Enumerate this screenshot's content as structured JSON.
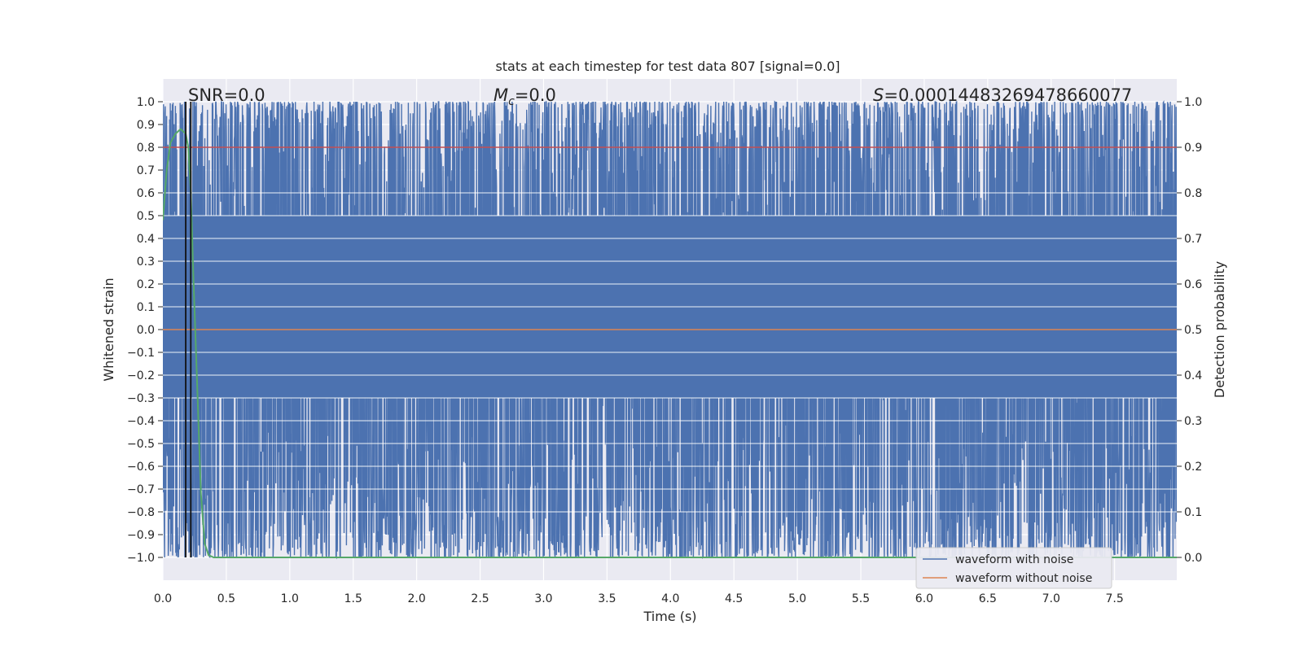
{
  "chart_data": {
    "type": "line",
    "title": "stats at each timestep for test data 807 [signal=0.0]",
    "xlabel": "Time (s)",
    "ylabel_left": "Whitened strain",
    "ylabel_right": "Detection probability",
    "xlim": [
      0.0,
      7.99
    ],
    "ylim_left": [
      -1.1,
      1.1
    ],
    "ylim_right": [
      -0.05,
      1.05
    ],
    "x_ticks": [
      0.0,
      0.5,
      1.0,
      1.5,
      2.0,
      2.5,
      3.0,
      3.5,
      4.0,
      4.5,
      5.0,
      5.5,
      6.0,
      6.5,
      7.0,
      7.5
    ],
    "x_tick_labels": [
      "0.0",
      "0.5",
      "1.0",
      "1.5",
      "2.0",
      "2.5",
      "3.0",
      "3.5",
      "4.0",
      "4.5",
      "5.0",
      "5.5",
      "6.0",
      "6.5",
      "7.0",
      "7.5"
    ],
    "y_left_ticks": [
      1.0,
      0.9,
      0.8,
      0.7,
      0.6,
      0.5,
      0.4,
      0.3,
      0.2,
      0.1,
      0.0,
      -0.1,
      -0.2,
      -0.3,
      -0.4,
      -0.5,
      -0.6,
      -0.7,
      -0.8,
      -0.9,
      -1.0
    ],
    "y_left_tick_labels": [
      "1.0",
      "0.9",
      "0.8",
      "0.7",
      "0.6",
      "0.5",
      "0.4",
      "0.3",
      "0.2",
      "0.1",
      "0.0",
      "−0.1",
      "−0.2",
      "−0.3",
      "−0.4",
      "−0.5",
      "−0.6",
      "−0.7",
      "−0.8",
      "−0.9",
      "−1.0"
    ],
    "y_right_ticks": [
      1.0,
      0.9,
      0.8,
      0.7,
      0.6,
      0.5,
      0.4,
      0.3,
      0.2,
      0.1,
      0.0
    ],
    "y_right_tick_labels": [
      "1.0",
      "0.9",
      "0.8",
      "0.7",
      "0.6",
      "0.5",
      "0.4",
      "0.3",
      "0.2",
      "0.1",
      "0.0"
    ],
    "series": [
      {
        "name": "waveform with noise",
        "color": "#4c72b0",
        "description": "whitened strain noise filling range -1.0 to 1.0"
      },
      {
        "name": "waveform without noise",
        "color": "#dd8452",
        "y_constant": 0.0
      },
      {
        "name": "detection probability",
        "color": "#55a868",
        "axis": "right",
        "x": [
          0.0,
          0.03,
          0.06,
          0.1,
          0.14,
          0.18,
          0.2,
          0.22,
          0.24,
          0.27,
          0.3,
          0.33,
          0.36,
          0.4,
          1.0,
          2.0,
          4.0,
          6.0,
          7.99
        ],
        "y": [
          0.74,
          0.85,
          0.91,
          0.93,
          0.94,
          0.93,
          0.9,
          0.8,
          0.62,
          0.38,
          0.14,
          0.03,
          0.005,
          0.0,
          0.0,
          0.0,
          0.0,
          0.0,
          0.0
        ]
      },
      {
        "name": "detection threshold",
        "color": "#c44e52",
        "axis": "right",
        "y_constant": 0.9
      }
    ],
    "vertical_markers": [
      {
        "x": 0.18,
        "color": "#111111"
      },
      {
        "x": 0.22,
        "color": "#111111"
      }
    ],
    "annotations": {
      "snr": "SNR=0.0",
      "mc_symbol": "M",
      "mc_subscript": "c",
      "mc_value": "=0.0",
      "s_symbol": "S",
      "s_value": "=0.00014483269478660077"
    },
    "legend": {
      "placement": "lower-right",
      "entries": [
        "waveform with noise",
        "waveform without noise"
      ]
    }
  }
}
